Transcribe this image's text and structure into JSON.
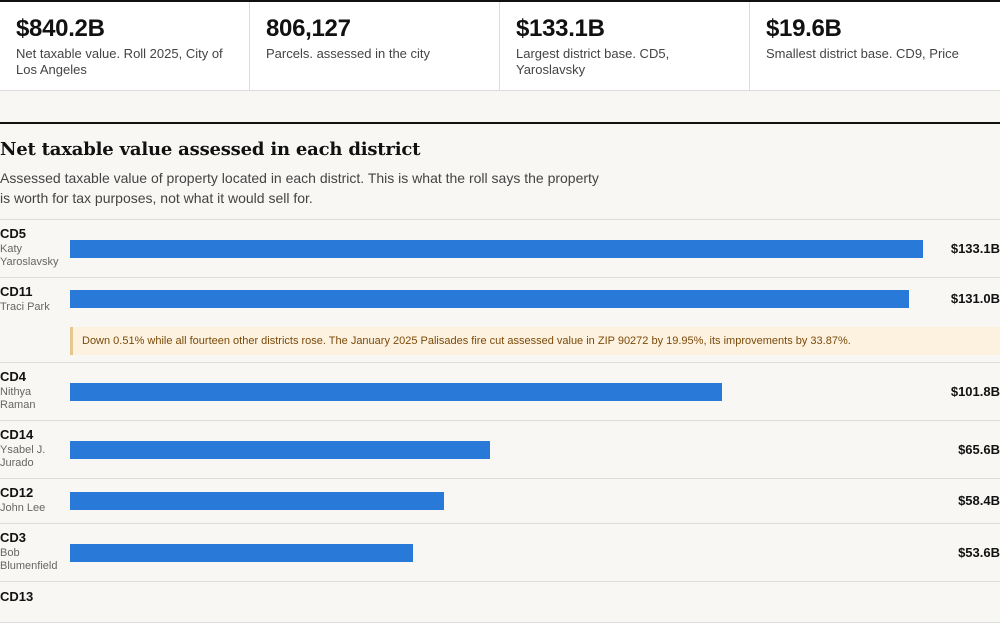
{
  "stats": [
    {
      "value": "$840.2B",
      "label": "Net taxable value. Roll 2025, City of Los Angeles"
    },
    {
      "value": "806,127",
      "label": "Parcels. assessed in the city"
    },
    {
      "value": "$133.1B",
      "label": "Largest district base. CD5, Yaroslavsky"
    },
    {
      "value": "$19.6B",
      "label": "Smallest district base. CD9, Price"
    }
  ],
  "section": {
    "title": "Net taxable value assessed in each district",
    "subtitle": "Assessed taxable value of property located in each district. This is what the roll says the property is worth for tax purposes, not what it would sell for."
  },
  "chart_data": {
    "type": "bar",
    "orientation": "horizontal",
    "categories": [
      "CD5",
      "CD11",
      "CD4",
      "CD14",
      "CD12",
      "CD3",
      "CD13"
    ],
    "members": [
      "Katy Yaroslavsky",
      "Traci Park",
      "Nithya Raman",
      "Ysabel J. Jurado",
      "John Lee",
      "Bob Blumenfield",
      ""
    ],
    "values": [
      133.1,
      131.0,
      101.8,
      65.6,
      58.4,
      53.6,
      null
    ],
    "value_labels": [
      "$133.1B",
      "$131.0B",
      "$101.8B",
      "$65.6B",
      "$58.4B",
      "$53.6B",
      ""
    ],
    "note": {
      "district": "CD11",
      "text": "Down 0.51% while all fourteen other districts rose. The January 2025 Palisades fire cut assessed value in ZIP 90272 by 19.95%, its improvements by 33.87%."
    },
    "xlim": [
      0,
      135
    ],
    "bar_color": "#2979d8"
  }
}
